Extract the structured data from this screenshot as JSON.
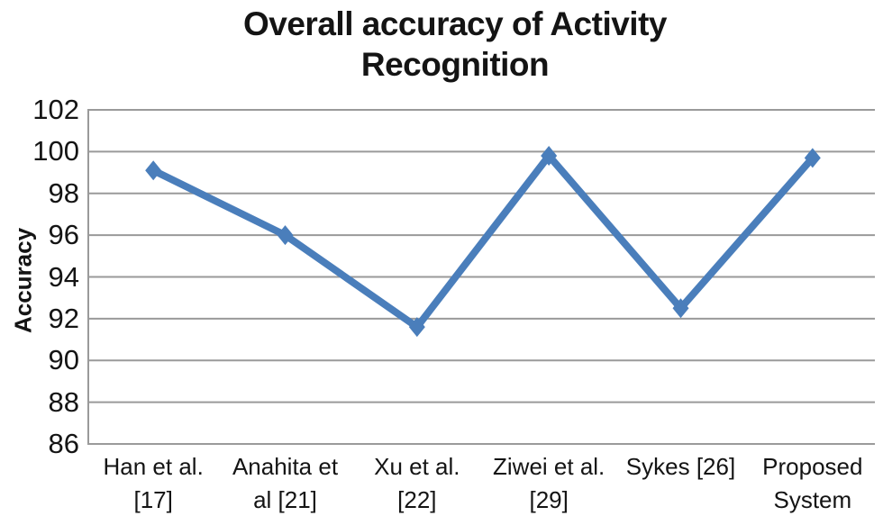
{
  "chart_data": {
    "type": "line",
    "title": "Overall accuracy of Activity\nRecognition",
    "ylabel": "Accuracy",
    "xlabel": "",
    "categories": [
      "Han et al.\n[17]",
      "Anahita et\nal [21]",
      "Xu et al.\n[22]",
      "Ziwei et al.\n[29]",
      "Sykes [26]",
      "Proposed\nSystem"
    ],
    "series": [
      {
        "name": "Accuracy",
        "values": [
          99.1,
          96,
          91.6,
          99.8,
          92.5,
          99.7
        ]
      }
    ],
    "ylim": [
      86,
      102
    ],
    "ytick_step": 2,
    "grid": true,
    "legend_position": "none",
    "marker": "diamond",
    "colors": {
      "series": "#4A7EBB",
      "gridline": "#9A9A9A",
      "axis_text": "#141414",
      "background": "#FFFFFF"
    }
  }
}
